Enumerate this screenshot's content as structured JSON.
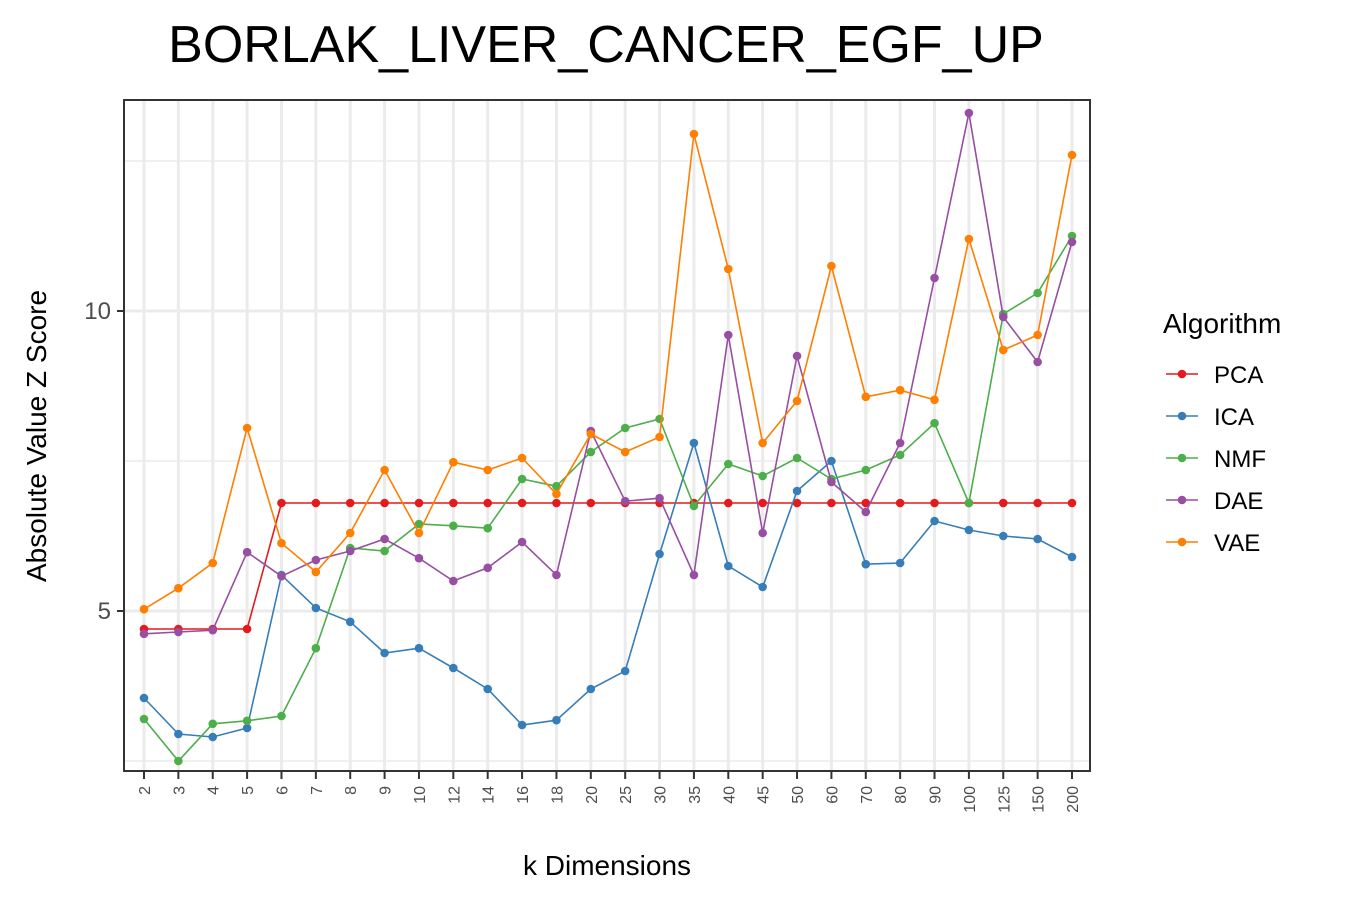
{
  "chart_data": {
    "type": "line",
    "title": "BORLAK_LIVER_CANCER_EGF_UP",
    "xlabel": "k Dimensions",
    "ylabel": "Absolute Value Z Score",
    "ylim": [
      2.35,
      13.5
    ],
    "yticks": [
      5,
      10
    ],
    "grid": true,
    "legend_title": "Algorithm",
    "legend_position": "right",
    "categories": [
      "2",
      "3",
      "4",
      "5",
      "6",
      "7",
      "8",
      "9",
      "10",
      "12",
      "14",
      "16",
      "18",
      "20",
      "25",
      "30",
      "35",
      "40",
      "45",
      "50",
      "60",
      "70",
      "80",
      "90",
      "100",
      "125",
      "150",
      "200"
    ],
    "series": [
      {
        "name": "PCA",
        "color": "#e41a1c",
        "values": [
          4.7,
          4.7,
          4.7,
          4.7,
          6.8,
          6.8,
          6.8,
          6.8,
          6.8,
          6.8,
          6.8,
          6.8,
          6.8,
          6.8,
          6.8,
          6.8,
          6.8,
          6.8,
          6.8,
          6.8,
          6.8,
          6.8,
          6.8,
          6.8,
          6.8,
          6.8,
          6.8,
          6.8
        ]
      },
      {
        "name": "ICA",
        "color": "#377eb8",
        "values": [
          3.55,
          2.95,
          2.9,
          3.05,
          5.6,
          5.05,
          4.82,
          4.3,
          4.38,
          4.05,
          3.7,
          3.1,
          3.18,
          3.7,
          4.0,
          5.95,
          7.8,
          5.75,
          5.4,
          7.0,
          7.5,
          5.78,
          5.8,
          6.5,
          6.35,
          6.25,
          6.2,
          5.9
        ]
      },
      {
        "name": "NMF",
        "color": "#4daf4a",
        "values": [
          3.2,
          2.5,
          3.12,
          3.17,
          3.25,
          4.38,
          6.05,
          6.0,
          6.45,
          6.42,
          6.38,
          7.2,
          7.08,
          7.65,
          8.05,
          8.2,
          6.75,
          7.45,
          7.25,
          7.55,
          7.2,
          7.35,
          7.6,
          8.13,
          6.8,
          9.95,
          10.3,
          11.25
        ]
      },
      {
        "name": "DAE",
        "color": "#984ea3",
        "values": [
          4.62,
          4.65,
          4.68,
          5.98,
          5.58,
          5.85,
          6.0,
          6.2,
          5.88,
          5.5,
          5.72,
          6.15,
          5.6,
          8.0,
          6.83,
          6.88,
          5.6,
          9.6,
          6.3,
          9.25,
          7.15,
          6.65,
          7.8,
          10.55,
          13.3,
          9.9,
          9.15,
          11.15
        ]
      },
      {
        "name": "VAE",
        "color": "#ff7f00",
        "values": [
          5.03,
          5.38,
          5.8,
          8.05,
          6.13,
          5.65,
          6.3,
          7.35,
          6.3,
          7.48,
          7.35,
          7.55,
          6.95,
          7.95,
          7.65,
          7.9,
          12.95,
          10.7,
          7.8,
          8.5,
          10.75,
          8.57,
          8.68,
          8.52,
          11.2,
          9.35,
          9.6,
          12.6
        ]
      }
    ]
  }
}
